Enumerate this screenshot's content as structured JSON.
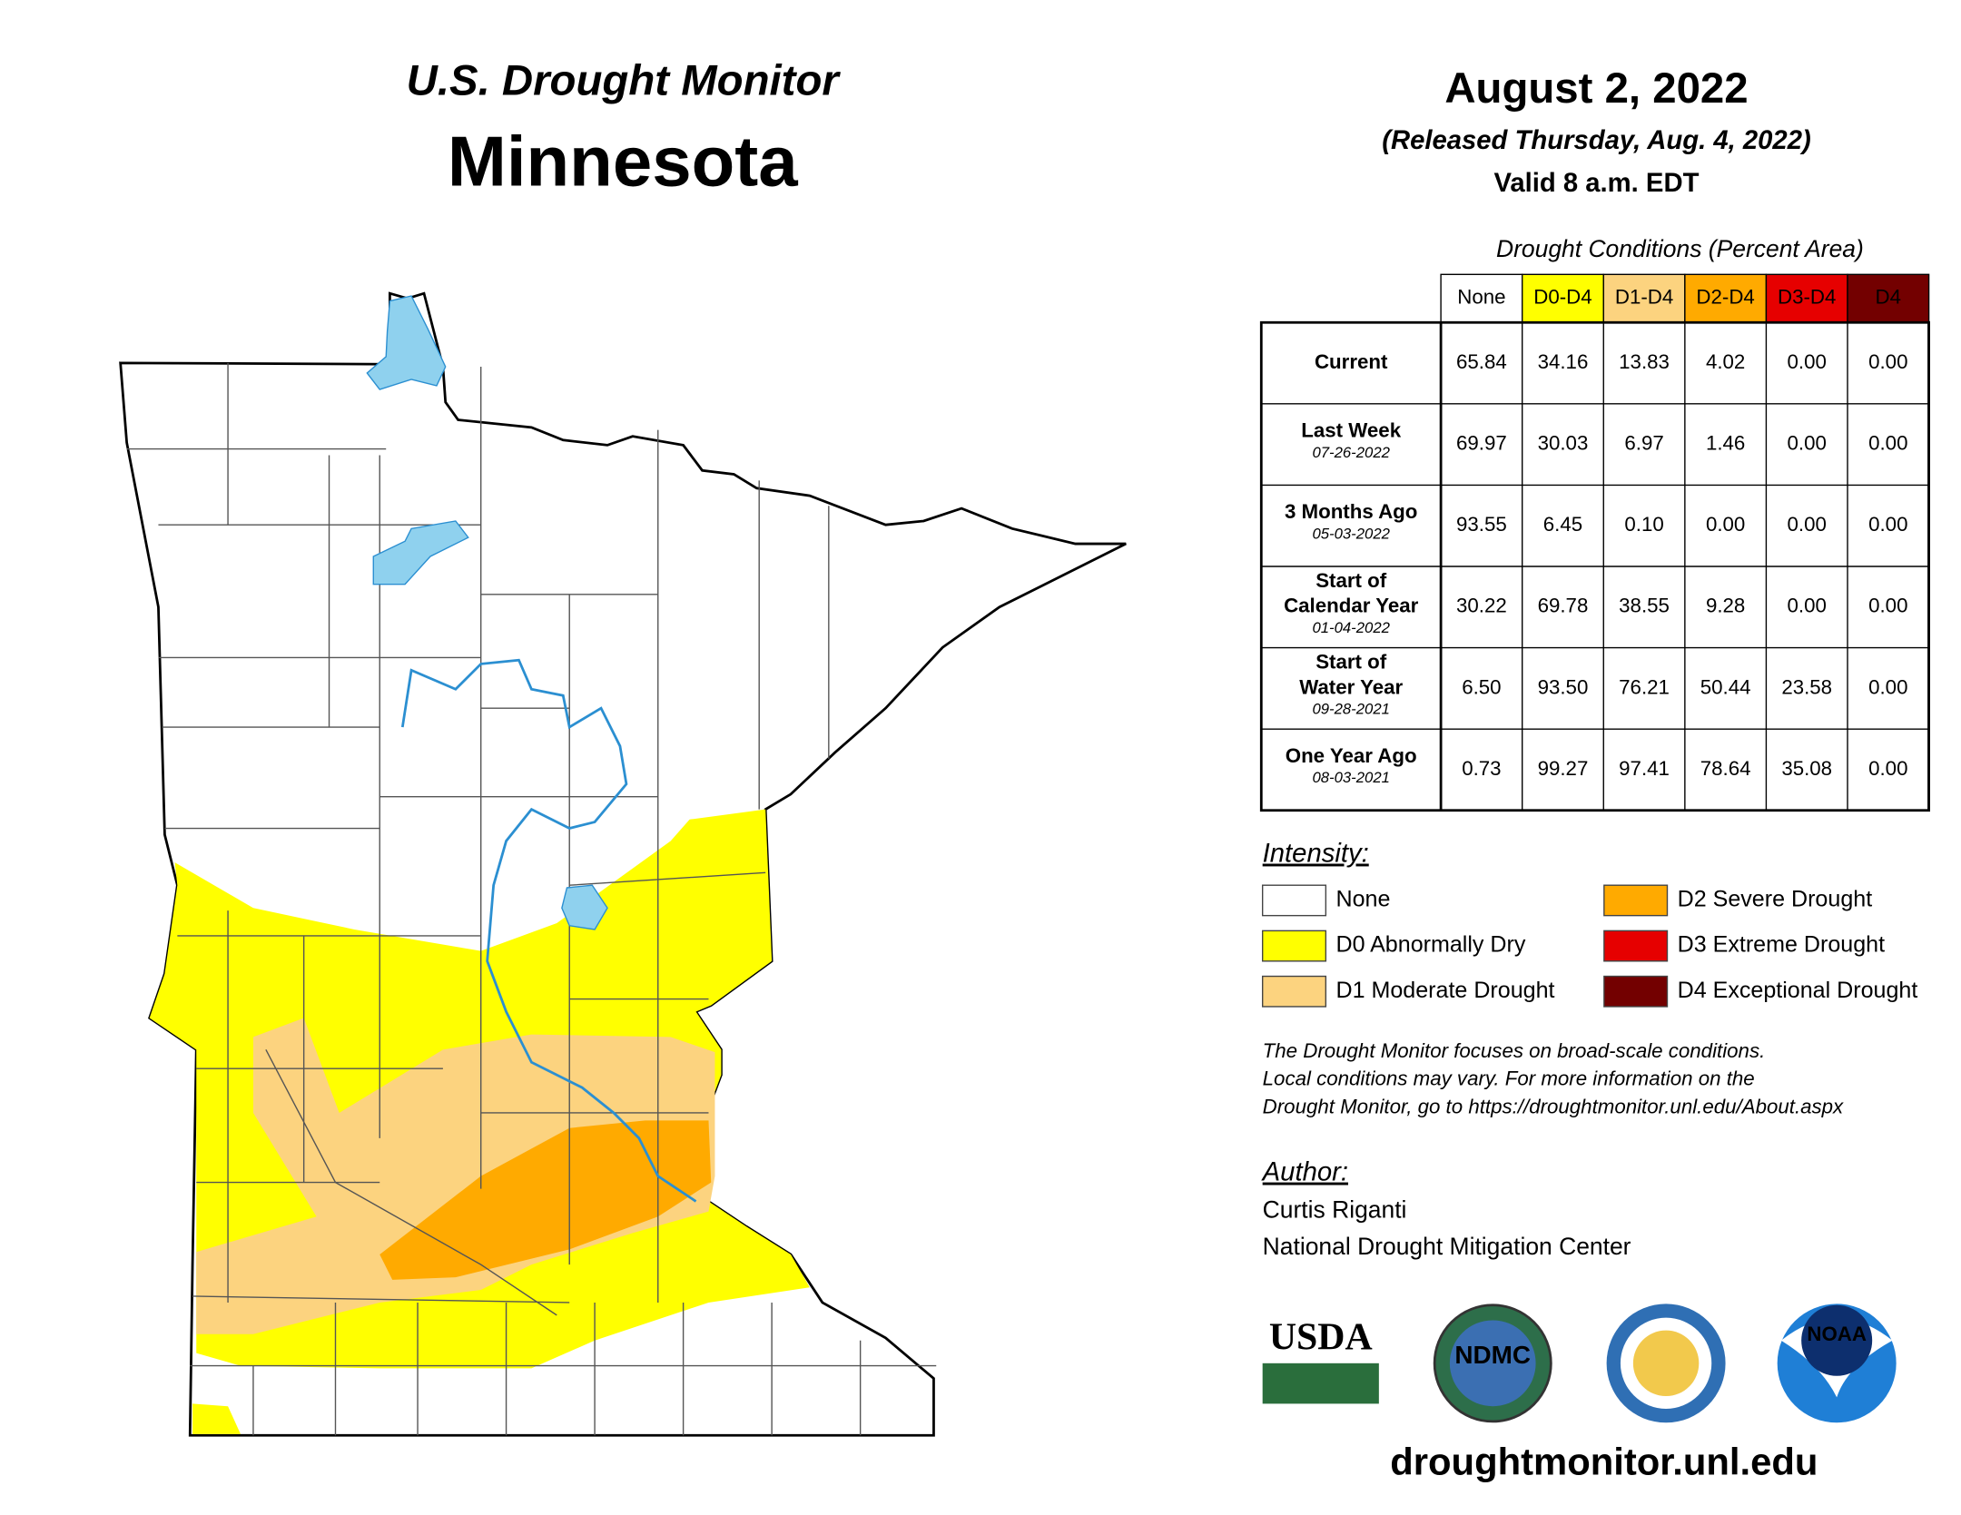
{
  "header": {
    "program": "U.S. Drought Monitor",
    "state": "Minnesota",
    "date": "August 2, 2022",
    "released": "(Released Thursday, Aug. 4, 2022)",
    "valid": "Valid 8 a.m. EDT"
  },
  "table": {
    "caption": "Drought Conditions (Percent Area)",
    "columns": [
      {
        "label": "None",
        "color": "#ffffff",
        "text_color": "#000000"
      },
      {
        "label": "D0-D4",
        "color": "#ffff00",
        "text_color": "#000000"
      },
      {
        "label": "D1-D4",
        "color": "#fcd37f",
        "text_color": "#000000"
      },
      {
        "label": "D2-D4",
        "color": "#ffaa00",
        "text_color": "#000000"
      },
      {
        "label": "D3-D4",
        "color": "#e60000",
        "text_color": "#ffffff"
      },
      {
        "label": "D4",
        "color": "#730000",
        "text_color": "#ffffff"
      }
    ],
    "rows": [
      {
        "label": [
          "Current"
        ],
        "values": [
          "65.84",
          "34.16",
          "13.83",
          "4.02",
          "0.00",
          "0.00"
        ]
      },
      {
        "label": [
          "Last Week"
        ],
        "date": "07-26-2022",
        "values": [
          "69.97",
          "30.03",
          "6.97",
          "1.46",
          "0.00",
          "0.00"
        ]
      },
      {
        "label": [
          "3 Months Ago"
        ],
        "date": "05-03-2022",
        "values": [
          "93.55",
          "6.45",
          "0.10",
          "0.00",
          "0.00",
          "0.00"
        ]
      },
      {
        "label": [
          "Start of",
          "Calendar Year"
        ],
        "date": "01-04-2022",
        "values": [
          "30.22",
          "69.78",
          "38.55",
          "9.28",
          "0.00",
          "0.00"
        ]
      },
      {
        "label": [
          "Start of",
          "Water Year"
        ],
        "date": "09-28-2021",
        "values": [
          "6.50",
          "93.50",
          "76.21",
          "50.44",
          "23.58",
          "0.00"
        ]
      },
      {
        "label": [
          "One Year Ago"
        ],
        "date": "08-03-2021",
        "values": [
          "0.73",
          "99.27",
          "97.41",
          "78.64",
          "35.08",
          "0.00"
        ]
      }
    ]
  },
  "legend": {
    "title": "Intensity:",
    "items": [
      {
        "label": "None",
        "color": "#ffffff"
      },
      {
        "label": "D0 Abnormally Dry",
        "color": "#ffff00"
      },
      {
        "label": "D1 Moderate Drought",
        "color": "#fcd37f"
      },
      {
        "label": "D2 Severe Drought",
        "color": "#ffaa00"
      },
      {
        "label": "D3 Extreme Drought",
        "color": "#e60000"
      },
      {
        "label": "D4 Exceptional Drought",
        "color": "#730000"
      }
    ]
  },
  "note": [
    "The Drought Monitor focuses on broad-scale conditions.",
    "Local conditions may vary. For more information on the",
    "Drought Monitor, go to https://droughtmonitor.unl.edu/About.aspx"
  ],
  "author": {
    "title": "Author:",
    "lines": [
      "Curtis Riganti",
      "National Drought Mitigation Center"
    ]
  },
  "logos": [
    "USDA",
    "NDMC",
    "NOAA"
  ],
  "url": "droughtmonitor.unl.edu"
}
